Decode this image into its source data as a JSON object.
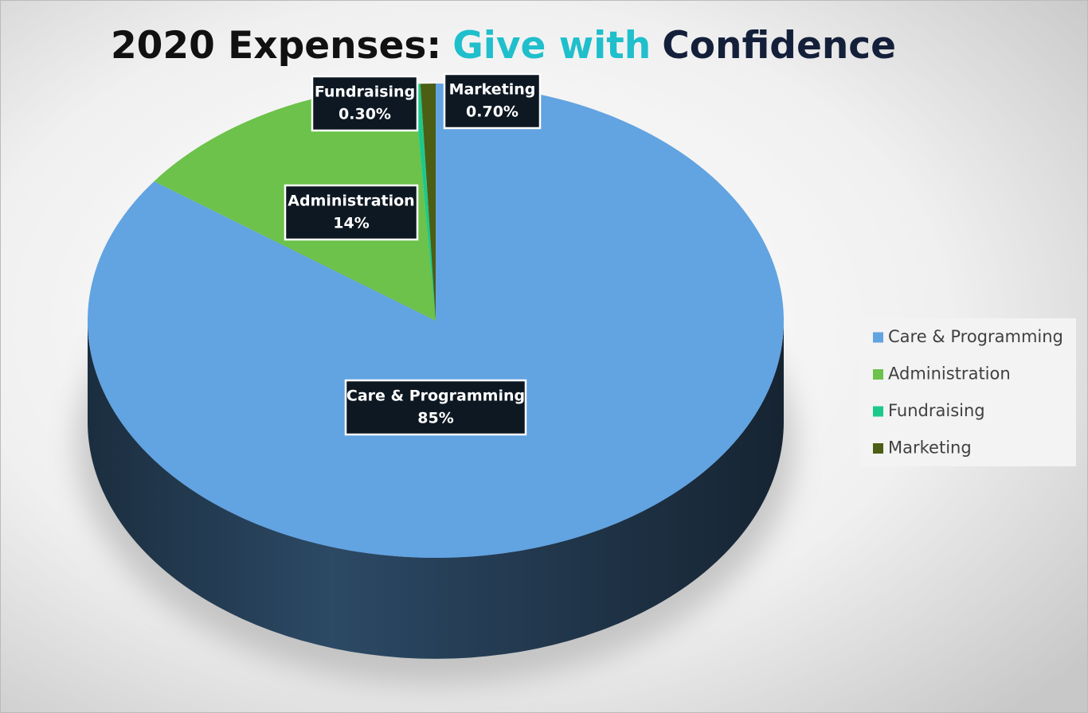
{
  "chart_data": {
    "type": "pie",
    "title": [
      {
        "text": "2020 Expenses:",
        "color": "#111111"
      },
      {
        "text": "Give with",
        "color": "#1fbfcc"
      },
      {
        "text": "Confidence",
        "color": "#14203a"
      }
    ],
    "categories": [
      "Care & Programming",
      "Administration",
      "Fundraising",
      "Marketing"
    ],
    "values": [
      85,
      14,
      0.3,
      0.7
    ],
    "value_labels": [
      "85%",
      "14%",
      "0.30%",
      "0.70%"
    ],
    "colors": [
      "#62a3e1",
      "#6cc24a",
      "#1dc98a",
      "#4b5e14"
    ],
    "legend": "right"
  }
}
